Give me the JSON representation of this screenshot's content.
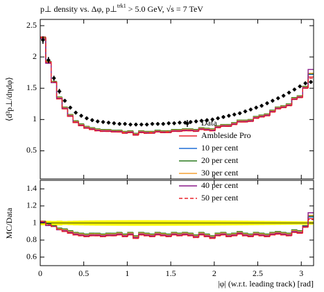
{
  "chart_data": {
    "type": "histogram",
    "title": [
      "p⊥ density vs. Δφ, p⊥",
      "trk1",
      " > 5.0 GeV, √s = 7 TeV"
    ],
    "ylabel": "⟨d²p⊥/dηdφ⟩",
    "ratio_ylabel": "MC/Data",
    "xlabel": "|φ| (w.r.t. leading track) [rad]",
    "xlim": [
      0,
      3.1416
    ],
    "xticks": [
      0,
      0.5,
      1,
      1.5,
      2,
      2.5,
      3
    ],
    "ylim": [
      0.05,
      2.6
    ],
    "yticks": [
      0.5,
      1,
      1.5,
      2,
      2.5
    ],
    "ratio_ylim": [
      0.5,
      1.5
    ],
    "ratio_yticks": [
      0.6,
      0.8,
      1,
      1.2,
      1.4
    ],
    "bins": [
      0,
      0.0628,
      0.1257,
      0.1885,
      0.2513,
      0.3142,
      0.377,
      0.4398,
      0.5027,
      0.5655,
      0.6283,
      0.6912,
      0.754,
      0.8168,
      0.8796,
      0.9425,
      1.0053,
      1.0681,
      1.131,
      1.1938,
      1.2566,
      1.3195,
      1.3823,
      1.4451,
      1.508,
      1.5708,
      1.6336,
      1.6965,
      1.7593,
      1.8221,
      1.885,
      1.9478,
      2.0106,
      2.0735,
      2.1363,
      2.1991,
      2.2619,
      2.3248,
      2.3876,
      2.4504,
      2.5133,
      2.5761,
      2.6389,
      2.7018,
      2.7646,
      2.8274,
      2.8903,
      2.9531,
      3.0159,
      3.0788,
      3.1416
    ],
    "data": {
      "name": "Data",
      "color": "#000000",
      "values": [
        2.27,
        1.95,
        1.66,
        1.45,
        1.3,
        1.19,
        1.11,
        1.06,
        1.02,
        0.99,
        0.97,
        0.96,
        0.95,
        0.94,
        0.93,
        0.93,
        0.92,
        0.92,
        0.92,
        0.92,
        0.93,
        0.93,
        0.93,
        0.94,
        0.94,
        0.95,
        0.95,
        0.96,
        0.97,
        0.98,
        0.99,
        1.0,
        1.02,
        1.04,
        1.06,
        1.08,
        1.1,
        1.13,
        1.16,
        1.19,
        1.22,
        1.26,
        1.3,
        1.34,
        1.38,
        1.43,
        1.48,
        1.53,
        1.58,
        1.6
      ],
      "errors": [
        0.06,
        0.05,
        0.04,
        0.04,
        0.03,
        0.03,
        0.03,
        0.03,
        0.03,
        0.03,
        0.03,
        0.03,
        0.03,
        0.03,
        0.03,
        0.03,
        0.03,
        0.03,
        0.03,
        0.03,
        0.03,
        0.03,
        0.03,
        0.03,
        0.03,
        0.03,
        0.03,
        0.03,
        0.03,
        0.03,
        0.03,
        0.03,
        0.03,
        0.03,
        0.03,
        0.03,
        0.03,
        0.03,
        0.03,
        0.03,
        0.03,
        0.03,
        0.03,
        0.03,
        0.03,
        0.03,
        0.03,
        0.03,
        0.03,
        0.03
      ]
    },
    "series": [
      {
        "name": "Ambleside Pro",
        "color": "#e8202a",
        "dashed": false,
        "values": [
          2.32,
          1.91,
          1.59,
          1.33,
          1.17,
          1.05,
          0.95,
          0.9,
          0.86,
          0.84,
          0.82,
          0.81,
          0.81,
          0.8,
          0.8,
          0.78,
          0.79,
          0.75,
          0.79,
          0.78,
          0.78,
          0.8,
          0.79,
          0.79,
          0.81,
          0.81,
          0.82,
          0.82,
          0.81,
          0.84,
          0.83,
          0.82,
          0.87,
          0.89,
          0.89,
          0.92,
          0.96,
          0.96,
          0.97,
          1.02,
          1.04,
          1.06,
          1.12,
          1.17,
          1.19,
          1.22,
          1.32,
          1.35,
          1.5,
          1.68
        ],
        "ratio": [
          1.02,
          0.98,
          0.96,
          0.92,
          0.9,
          0.88,
          0.86,
          0.85,
          0.84,
          0.85,
          0.85,
          0.84,
          0.85,
          0.85,
          0.86,
          0.84,
          0.86,
          0.82,
          0.86,
          0.85,
          0.84,
          0.86,
          0.85,
          0.84,
          0.86,
          0.85,
          0.86,
          0.85,
          0.83,
          0.86,
          0.84,
          0.82,
          0.85,
          0.86,
          0.84,
          0.85,
          0.87,
          0.85,
          0.84,
          0.86,
          0.85,
          0.84,
          0.86,
          0.87,
          0.86,
          0.85,
          0.89,
          0.88,
          0.95,
          1.05
        ]
      },
      {
        "name": "10 per cent",
        "color": "#1f6fd6",
        "dashed": false,
        "values": [
          2.3,
          1.92,
          1.6,
          1.35,
          1.19,
          1.07,
          0.97,
          0.92,
          0.88,
          0.86,
          0.84,
          0.83,
          0.83,
          0.82,
          0.82,
          0.8,
          0.81,
          0.77,
          0.81,
          0.8,
          0.8,
          0.82,
          0.81,
          0.81,
          0.83,
          0.83,
          0.84,
          0.84,
          0.83,
          0.86,
          0.85,
          0.84,
          0.89,
          0.91,
          0.91,
          0.94,
          0.98,
          0.98,
          0.99,
          1.04,
          1.06,
          1.08,
          1.14,
          1.19,
          1.21,
          1.24,
          1.34,
          1.37,
          1.52,
          1.72
        ],
        "ratio": [
          1.01,
          0.98,
          0.96,
          0.93,
          0.92,
          0.9,
          0.88,
          0.87,
          0.86,
          0.87,
          0.87,
          0.86,
          0.87,
          0.87,
          0.88,
          0.86,
          0.88,
          0.84,
          0.88,
          0.87,
          0.86,
          0.88,
          0.87,
          0.86,
          0.88,
          0.87,
          0.88,
          0.87,
          0.85,
          0.88,
          0.86,
          0.84,
          0.87,
          0.88,
          0.86,
          0.87,
          0.89,
          0.87,
          0.86,
          0.88,
          0.87,
          0.86,
          0.88,
          0.89,
          0.88,
          0.87,
          0.91,
          0.9,
          0.96,
          1.07
        ]
      },
      {
        "name": "20 per cent",
        "color": "#2a7a1f",
        "dashed": false,
        "values": [
          2.31,
          1.93,
          1.61,
          1.36,
          1.2,
          1.08,
          0.98,
          0.93,
          0.89,
          0.87,
          0.85,
          0.84,
          0.84,
          0.83,
          0.83,
          0.81,
          0.82,
          0.78,
          0.82,
          0.81,
          0.81,
          0.83,
          0.82,
          0.82,
          0.84,
          0.84,
          0.85,
          0.85,
          0.84,
          0.87,
          0.86,
          0.85,
          0.9,
          0.92,
          0.92,
          0.95,
          0.99,
          0.99,
          1.0,
          1.05,
          1.07,
          1.09,
          1.15,
          1.2,
          1.22,
          1.25,
          1.35,
          1.38,
          1.53,
          1.73
        ],
        "ratio": [
          1.02,
          0.99,
          0.97,
          0.94,
          0.93,
          0.91,
          0.89,
          0.88,
          0.87,
          0.88,
          0.88,
          0.87,
          0.88,
          0.88,
          0.89,
          0.87,
          0.89,
          0.85,
          0.89,
          0.88,
          0.87,
          0.89,
          0.88,
          0.87,
          0.89,
          0.88,
          0.89,
          0.88,
          0.86,
          0.89,
          0.87,
          0.85,
          0.88,
          0.89,
          0.87,
          0.88,
          0.9,
          0.88,
          0.87,
          0.89,
          0.88,
          0.87,
          0.89,
          0.9,
          0.89,
          0.88,
          0.92,
          0.91,
          0.97,
          1.08
        ]
      },
      {
        "name": "30 per cent",
        "color": "#f5a033",
        "dashed": false,
        "values": [
          2.3,
          1.92,
          1.6,
          1.35,
          1.19,
          1.07,
          0.97,
          0.92,
          0.88,
          0.86,
          0.84,
          0.83,
          0.83,
          0.82,
          0.82,
          0.8,
          0.81,
          0.77,
          0.81,
          0.8,
          0.8,
          0.82,
          0.81,
          0.81,
          0.83,
          0.83,
          0.84,
          0.84,
          0.83,
          0.86,
          0.85,
          0.84,
          0.89,
          0.91,
          0.91,
          0.94,
          0.98,
          0.98,
          0.99,
          1.04,
          1.06,
          1.08,
          1.14,
          1.19,
          1.21,
          1.24,
          1.34,
          1.37,
          1.52,
          1.74
        ],
        "ratio": [
          1.01,
          0.98,
          0.96,
          0.93,
          0.92,
          0.9,
          0.88,
          0.87,
          0.86,
          0.87,
          0.87,
          0.86,
          0.87,
          0.87,
          0.88,
          0.86,
          0.88,
          0.84,
          0.88,
          0.87,
          0.86,
          0.88,
          0.87,
          0.86,
          0.88,
          0.87,
          0.88,
          0.87,
          0.85,
          0.88,
          0.86,
          0.84,
          0.87,
          0.88,
          0.86,
          0.87,
          0.89,
          0.87,
          0.86,
          0.88,
          0.87,
          0.86,
          0.88,
          0.89,
          0.88,
          0.87,
          0.91,
          0.9,
          0.96,
          1.09
        ]
      },
      {
        "name": "40 per cent",
        "color": "#8a1a8a",
        "dashed": false,
        "values": [
          2.29,
          1.9,
          1.59,
          1.34,
          1.18,
          1.06,
          0.96,
          0.91,
          0.87,
          0.85,
          0.83,
          0.82,
          0.82,
          0.81,
          0.81,
          0.79,
          0.8,
          0.76,
          0.8,
          0.79,
          0.79,
          0.81,
          0.8,
          0.8,
          0.82,
          0.82,
          0.83,
          0.83,
          0.82,
          0.85,
          0.84,
          0.83,
          0.88,
          0.9,
          0.9,
          0.93,
          0.97,
          0.97,
          0.98,
          1.03,
          1.05,
          1.07,
          1.13,
          1.18,
          1.2,
          1.23,
          1.33,
          1.36,
          1.51,
          1.8
        ],
        "ratio": [
          1.01,
          0.97,
          0.96,
          0.92,
          0.91,
          0.89,
          0.87,
          0.86,
          0.85,
          0.86,
          0.86,
          0.85,
          0.86,
          0.86,
          0.87,
          0.85,
          0.87,
          0.83,
          0.87,
          0.86,
          0.85,
          0.87,
          0.86,
          0.85,
          0.87,
          0.86,
          0.87,
          0.86,
          0.84,
          0.87,
          0.85,
          0.83,
          0.86,
          0.87,
          0.85,
          0.86,
          0.88,
          0.86,
          0.85,
          0.87,
          0.86,
          0.85,
          0.87,
          0.88,
          0.87,
          0.86,
          0.9,
          0.89,
          0.96,
          1.12
        ]
      },
      {
        "name": "50 per cent",
        "color": "#e8202a",
        "dashed": true,
        "values": [
          2.31,
          1.92,
          1.6,
          1.33,
          1.17,
          1.05,
          0.96,
          0.9,
          0.86,
          0.84,
          0.82,
          0.81,
          0.81,
          0.8,
          0.8,
          0.79,
          0.79,
          0.76,
          0.79,
          0.78,
          0.79,
          0.8,
          0.79,
          0.8,
          0.81,
          0.81,
          0.82,
          0.82,
          0.81,
          0.84,
          0.83,
          0.82,
          0.87,
          0.89,
          0.89,
          0.92,
          0.96,
          0.96,
          0.97,
          1.02,
          1.04,
          1.06,
          1.12,
          1.17,
          1.19,
          1.22,
          1.32,
          1.35,
          1.5,
          1.66
        ],
        "ratio": [
          1.02,
          0.98,
          0.96,
          0.92,
          0.9,
          0.88,
          0.86,
          0.85,
          0.84,
          0.85,
          0.85,
          0.84,
          0.85,
          0.85,
          0.86,
          0.84,
          0.86,
          0.82,
          0.86,
          0.85,
          0.84,
          0.86,
          0.85,
          0.84,
          0.86,
          0.85,
          0.86,
          0.85,
          0.83,
          0.86,
          0.84,
          0.82,
          0.85,
          0.86,
          0.84,
          0.85,
          0.87,
          0.85,
          0.84,
          0.86,
          0.85,
          0.84,
          0.86,
          0.87,
          0.86,
          0.85,
          0.89,
          0.88,
          0.95,
          1.04
        ]
      }
    ]
  }
}
